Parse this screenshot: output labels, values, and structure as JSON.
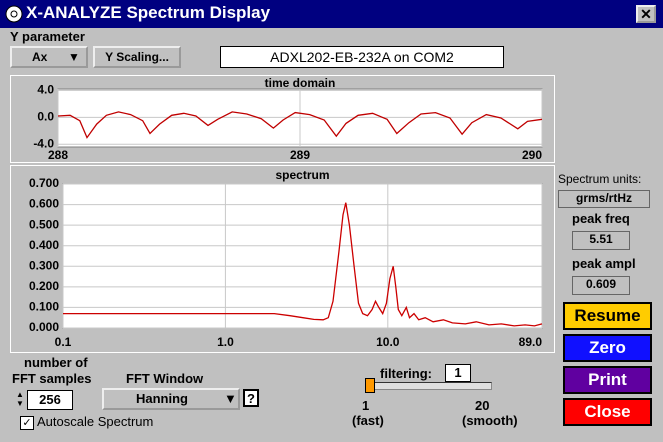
{
  "window": {
    "title": "X-ANALYZE Spectrum Display"
  },
  "y_parameter": {
    "label": "Y parameter",
    "selected": "Ax",
    "scaling_button": "Y Scaling..."
  },
  "device": "ADXL202-EB-232A on COM2",
  "chart_data": [
    {
      "type": "line",
      "title": "time domain",
      "color": "#c00000",
      "grid": true,
      "log_x": false,
      "x": [
        288.0,
        288.05,
        288.09,
        288.12,
        288.16,
        288.2,
        288.25,
        288.3,
        288.35,
        288.38,
        288.42,
        288.47,
        288.52,
        288.57,
        288.62,
        288.66,
        288.72,
        288.78,
        288.84,
        288.89,
        288.93,
        288.98,
        289.04,
        289.1,
        289.15,
        289.19,
        289.24,
        289.3,
        289.36,
        289.4,
        289.45,
        289.5,
        289.56,
        289.62,
        289.67,
        289.71,
        289.77,
        289.83,
        289.9,
        289.94,
        290.0
      ],
      "values": [
        0.2,
        0.3,
        -0.5,
        -3.0,
        -1.0,
        0.3,
        0.8,
        0.4,
        -0.5,
        -2.4,
        -1.0,
        0.3,
        0.6,
        0.2,
        -1.2,
        -0.3,
        0.8,
        0.5,
        -0.2,
        -1.6,
        -0.4,
        0.7,
        0.4,
        -0.4,
        -2.8,
        -0.9,
        0.3,
        0.6,
        -0.3,
        -2.4,
        -0.8,
        0.5,
        0.7,
        -0.1,
        -2.5,
        -0.8,
        0.4,
        -0.1,
        -1.7,
        -0.6,
        -0.3
      ],
      "xlim": [
        288,
        290
      ],
      "xticks": [
        288,
        289,
        290
      ],
      "ylim": [
        -4.4,
        4.2
      ],
      "yticks": [
        {
          "value": 4,
          "label": "4.0"
        },
        {
          "value": 0,
          "label": "0.0"
        },
        {
          "value": -4,
          "label": "-4.0"
        }
      ]
    },
    {
      "type": "line",
      "title": "spectrum",
      "color": "#cc0000",
      "grid": true,
      "log_x": true,
      "x": [
        0.1,
        0.2,
        0.5,
        1,
        2,
        2.5,
        3,
        3.5,
        4,
        4.3,
        4.6,
        5.0,
        5.3,
        5.51,
        5.8,
        6.2,
        6.6,
        7.0,
        7.5,
        8.0,
        8.4,
        8.8,
        9.3,
        9.8,
        10.3,
        10.8,
        11.2,
        11.6,
        12.2,
        13,
        13.6,
        14.5,
        15.5,
        17,
        19,
        22,
        25,
        30,
        35,
        42,
        50,
        60,
        70,
        80,
        89
      ],
      "values": [
        0.07,
        0.07,
        0.07,
        0.07,
        0.07,
        0.06,
        0.05,
        0.042,
        0.04,
        0.05,
        0.13,
        0.37,
        0.55,
        0.609,
        0.5,
        0.3,
        0.12,
        0.07,
        0.06,
        0.09,
        0.13,
        0.1,
        0.07,
        0.12,
        0.24,
        0.3,
        0.2,
        0.09,
        0.06,
        0.1,
        0.05,
        0.07,
        0.04,
        0.05,
        0.03,
        0.04,
        0.025,
        0.02,
        0.03,
        0.015,
        0.02,
        0.01,
        0.015,
        0.01,
        0.02
      ],
      "xlim": [
        0.1,
        89
      ],
      "xticks": [
        0.1,
        {
          "value": 1,
          "label": "1.0"
        },
        {
          "value": 10,
          "label": "10.0"
        },
        {
          "value": 89,
          "label": "89.0"
        }
      ],
      "ylim": [
        0,
        0.7
      ],
      "yticks": [
        {
          "value": 0.7,
          "label": "0.700"
        },
        {
          "value": 0.6,
          "label": "0.600"
        },
        {
          "value": 0.5,
          "label": "0.500"
        },
        {
          "value": 0.4,
          "label": "0.400"
        },
        {
          "value": 0.3,
          "label": "0.300"
        },
        {
          "value": 0.2,
          "label": "0.200"
        },
        {
          "value": 0.1,
          "label": "0.100"
        },
        {
          "value": 0,
          "label": "0.000"
        }
      ]
    }
  ],
  "spectrum_units": {
    "label": "Spectrum units:",
    "value": "grms/rtHz"
  },
  "peak_freq": {
    "label": "peak freq",
    "value": "5.51"
  },
  "peak_ampl": {
    "label": "peak ampl",
    "value": "0.609"
  },
  "buttons": [
    "Resume",
    "Zero",
    "Print",
    "Close"
  ],
  "fft_samples": {
    "label": [
      "number of",
      "FFT samples"
    ],
    "value": 256
  },
  "fft_window": {
    "label": "FFT Window",
    "selected": "Hanning",
    "help": "?"
  },
  "autoscale": {
    "label": "Autoscale Spectrum",
    "checked": true
  },
  "filtering": {
    "label": "filtering:",
    "value": 1,
    "min": 1,
    "min_label": "(fast)",
    "max": 20,
    "max_label": "(smooth)"
  }
}
